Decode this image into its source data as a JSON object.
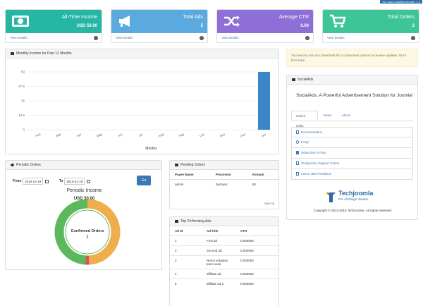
{
  "topbar": {
    "version_notice": "You have installed version: 1.0"
  },
  "stats": [
    {
      "title": "All-Time Income",
      "value": "USD 50.00",
      "link": "View Details",
      "icon": "money-icon",
      "color": "#26b6a4"
    },
    {
      "title": "Total Ads",
      "value": "5",
      "link": "View Details",
      "icon": "megaphone-icon",
      "color": "#5aaadf"
    },
    {
      "title": "Average CTR",
      "value": "0.00",
      "link": "View Details",
      "icon": "shuffle-icon",
      "color": "#8e6fd8"
    },
    {
      "title": "Total Orders",
      "value": "2",
      "link": "View Details",
      "icon": "cart-icon",
      "color": "#3dc598"
    }
  ],
  "monthly_income": {
    "title": "Monthly Income for Past 12 Months",
    "xlabel": "Months",
    "chart_data": {
      "type": "bar",
      "categories": [
        "Feb",
        "Mar",
        "Apr",
        "May",
        "Jun",
        "Jul",
        "Aug",
        "Sep",
        "Oct",
        "Nov",
        "Dec",
        "Jan"
      ],
      "values": [
        0,
        0,
        0,
        0,
        0,
        0,
        0,
        0,
        0,
        0,
        0,
        50
      ],
      "yticks": [
        "0",
        "12.5",
        "25",
        "37.5",
        "50"
      ],
      "ylim": [
        0,
        50
      ],
      "xlabel": "Months",
      "color": "#3a86c8",
      "grid": true
    }
  },
  "periodic_orders": {
    "title": "Periodic Orders",
    "from_label": "From",
    "from_value": "2015-12-19",
    "to_label": "To",
    "to_value": "2016-01-18",
    "go_label": "Go",
    "income_label": "Periodic Income",
    "income_value": "USD 50.00",
    "donut_label": "Confirmed Orders",
    "donut_value": "1",
    "donut_share": [
      0.49,
      0.02,
      0.49
    ],
    "donut_colors": [
      "#f0ad4e",
      "#d9534f",
      "#5cb85c"
    ]
  },
  "pending_orders": {
    "title": "Pending Orders",
    "columns": [
      "Payee Name",
      "Processor",
      "Amount"
    ],
    "rows": [
      [
        "admin",
        "bycheck",
        "50"
      ]
    ],
    "see_all": "See All"
  },
  "top_ads": {
    "title": "Top Performing Ads",
    "columns": [
      "Ad Id",
      "Ad Title",
      "CTR"
    ],
    "rows": [
      [
        "1",
        "First ad",
        "0.000000"
      ],
      [
        "2",
        "Second ad",
        "0.000000"
      ],
      [
        "3",
        "Nemo voluptas porro aute",
        "0.000000"
      ],
      [
        "4",
        "affiliate ad",
        "0.000000"
      ],
      [
        "5",
        "affiliate ad 2",
        "0.000000"
      ]
    ]
  },
  "notice": {
    "text": "You need to set your Download ID in component options to receive updates. Get it from ",
    "link": "here"
  },
  "socialads": {
    "title": "SocialAds",
    "tagline": "SocialAds, A Powerful Advertisement Solution for Joomla!",
    "tabs": [
      "Useful Links",
      "News",
      "About"
    ],
    "links": [
      "Documentation",
      "FAQs",
      "Subscribe to RSS",
      "Techjoomla Support Centre",
      "Leave JED Feedback"
    ],
    "logo_name": "Techjoomla",
    "logo_tagline": "For All things Joomla",
    "copyright": "Copyright © 2013-2016 TechJoomla. All rights reserved."
  }
}
